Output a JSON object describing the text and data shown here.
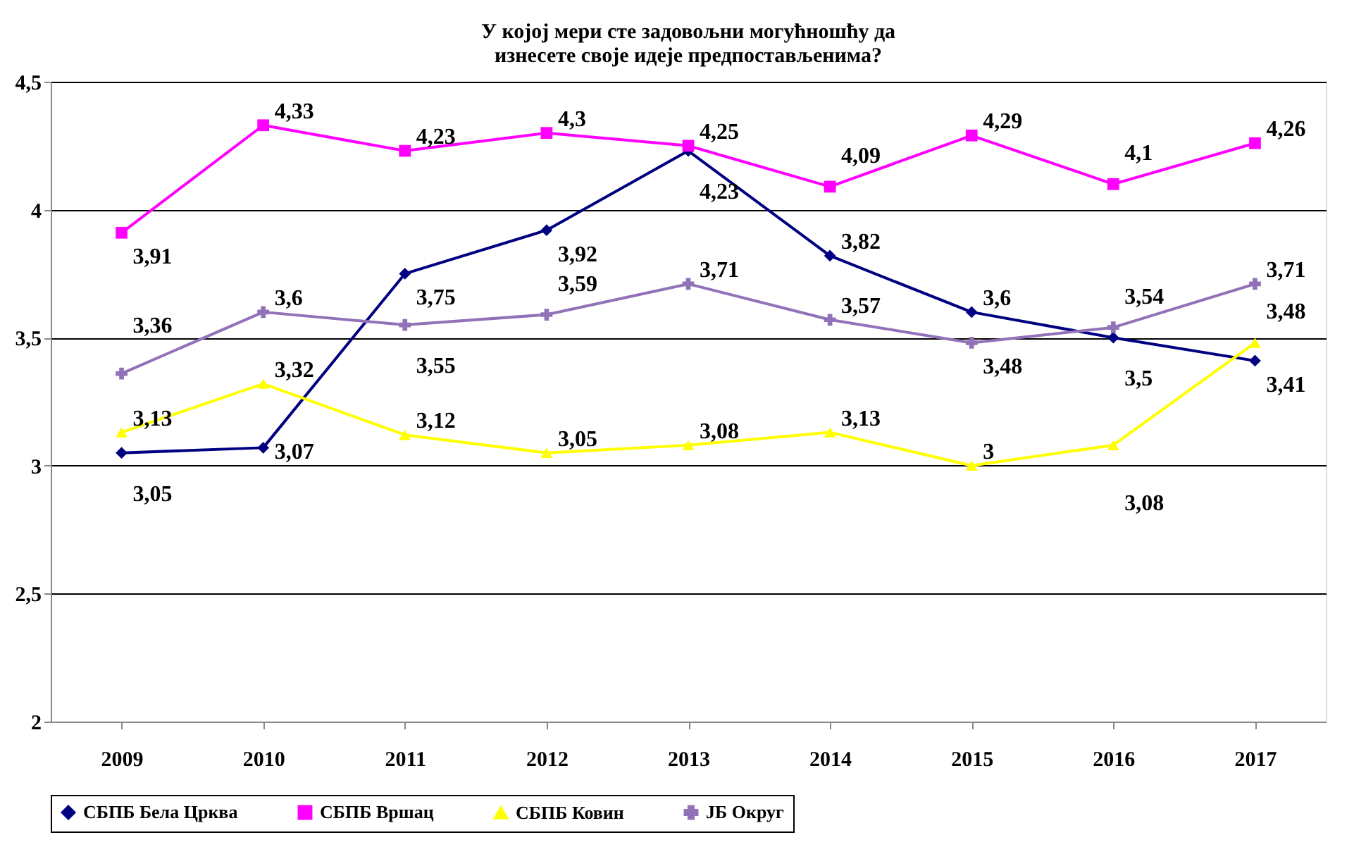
{
  "chart_data": {
    "type": "line",
    "title": "У којој мери сте задовољни могућношћу да изнесете своје идеје предпостављенима?",
    "categories": [
      "2009",
      "2010",
      "2011",
      "2012",
      "2013",
      "2014",
      "2015",
      "2016",
      "2017"
    ],
    "series": [
      {
        "name": "СБПБ Бела Црква",
        "color": "#000080",
        "marker": "diamond",
        "values": [
          3.05,
          3.07,
          3.75,
          3.92,
          4.23,
          3.82,
          3.6,
          3.5,
          3.41
        ],
        "value_labels": [
          "3,05",
          "3,07",
          "3,75",
          "3,92",
          "4,23",
          "3,82",
          "3,6",
          "3,5",
          "3,41"
        ]
      },
      {
        "name": "СБПБ Вршац",
        "color": "#ff00ff",
        "marker": "square",
        "values": [
          3.91,
          4.33,
          4.23,
          4.3,
          4.25,
          4.09,
          4.29,
          4.1,
          4.26
        ],
        "value_labels": [
          "3,91",
          "4,33",
          "4,23",
          "4,3",
          "4,25",
          "4,09",
          "4,29",
          "4,1",
          "4,26"
        ]
      },
      {
        "name": "СБПБ Ковин",
        "color": "#ffff00",
        "marker": "triangle",
        "values": [
          3.13,
          3.32,
          3.12,
          3.05,
          3.08,
          3.13,
          3,
          3.08,
          3.48
        ],
        "value_labels": [
          "3,13",
          "3,32",
          "3,12",
          "3,05",
          "3,08",
          "3,13",
          "3",
          "3,08",
          "3,48"
        ]
      },
      {
        "name": "ЈБ Округ",
        "color": "#9172b8",
        "marker": "cross",
        "values": [
          3.36,
          3.6,
          3.55,
          3.59,
          3.71,
          3.57,
          3.48,
          3.54,
          3.71
        ],
        "value_labels": [
          "3,36",
          "3,6",
          "3,55",
          "3,59",
          "3,71",
          "3,57",
          "3,48",
          "3,54",
          "3,71"
        ]
      }
    ],
    "ylim": [
      2,
      4.5
    ],
    "yticks": [
      2,
      {
        "value": 2.5,
        "label": "2,5"
      },
      3,
      {
        "value": 3.5,
        "label": "3,5"
      },
      4,
      {
        "value": 4.5,
        "label": "4,5"
      }
    ],
    "grid": "y",
    "legend": "bottom"
  }
}
